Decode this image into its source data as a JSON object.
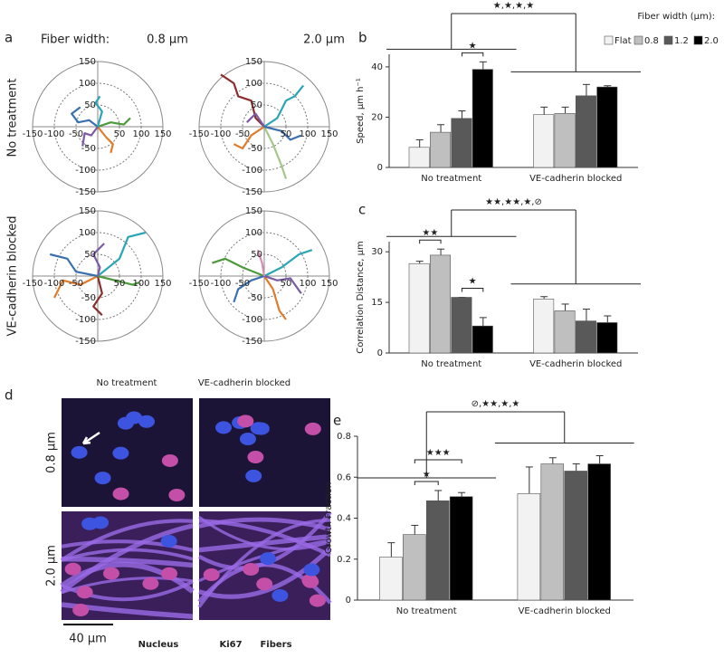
{
  "figure": {
    "panel_labels": [
      "a",
      "b",
      "c",
      "d",
      "e"
    ],
    "a": {
      "header_label": "Fiber width:",
      "columns": [
        "0.8 µm",
        "2.0 µm"
      ],
      "rows": [
        "No treatment",
        "VE-cadherin blocked"
      ]
    },
    "d": {
      "columns": [
        "No treatment",
        "VE-cadherin blocked"
      ],
      "rows": [
        "0.8 µm",
        "2.0 µm"
      ],
      "scale_bar": "40 µm",
      "channels": [
        {
          "name": "Nucleus",
          "color": "#3552d8"
        },
        {
          "name": "Ki67",
          "color": "#d42020"
        },
        {
          "name": "Fibers",
          "color": "#c93ad0"
        }
      ]
    }
  },
  "chart_data": [
    {
      "type": "polar",
      "xlim": [
        -150,
        150
      ],
      "ylim": [
        -150,
        150
      ],
      "xticks": [
        -150,
        -100,
        -50,
        50,
        100,
        150
      ],
      "yticks": [
        150,
        100,
        50,
        -50,
        -100,
        -150
      ],
      "series": [
        {
          "color": "#3a6fb0",
          "x": [
            0,
            -20,
            -45,
            -60,
            -40
          ],
          "y": [
            0,
            15,
            10,
            30,
            45
          ]
        },
        {
          "color": "#e07b2a",
          "x": [
            0,
            20,
            35,
            30
          ],
          "y": [
            0,
            -25,
            -40,
            -60
          ]
        },
        {
          "color": "#4c9a3c",
          "x": [
            0,
            30,
            60,
            75
          ],
          "y": [
            0,
            10,
            5,
            20
          ]
        },
        {
          "color": "#7b5aa6",
          "x": [
            0,
            -15,
            -30,
            -35
          ],
          "y": [
            0,
            -20,
            -15,
            -45
          ]
        },
        {
          "color": "#2aa5b5",
          "x": [
            0,
            10,
            -5,
            5
          ],
          "y": [
            0,
            35,
            55,
            70
          ]
        }
      ]
    },
    {
      "type": "polar",
      "xlim": [
        -150,
        150
      ],
      "ylim": [
        -150,
        150
      ],
      "xticks": [
        -150,
        -100,
        -50,
        50,
        100,
        150
      ],
      "yticks": [
        150,
        100,
        50,
        -50,
        -100,
        -150
      ],
      "series": [
        {
          "color": "#8b2e2e",
          "x": [
            0,
            -20,
            -30,
            -60,
            -70,
            -100
          ],
          "y": [
            0,
            20,
            60,
            70,
            100,
            120
          ]
        },
        {
          "color": "#2aa5b5",
          "x": [
            0,
            30,
            50,
            70,
            90
          ],
          "y": [
            0,
            20,
            60,
            70,
            95
          ]
        },
        {
          "color": "#a5c88a",
          "x": [
            0,
            20,
            40,
            50
          ],
          "y": [
            0,
            -40,
            -90,
            -120
          ]
        },
        {
          "color": "#e07b2a",
          "x": [
            0,
            -30,
            -50,
            -70
          ],
          "y": [
            0,
            -20,
            -50,
            -40
          ]
        },
        {
          "color": "#3a6fb0",
          "x": [
            0,
            40,
            60,
            85
          ],
          "y": [
            0,
            -10,
            -30,
            -20
          ]
        },
        {
          "color": "#7b5aa6",
          "x": [
            0,
            -20,
            -40
          ],
          "y": [
            0,
            30,
            10
          ]
        }
      ]
    },
    {
      "type": "polar",
      "xlim": [
        -150,
        150
      ],
      "ylim": [
        -150,
        150
      ],
      "xticks": [
        -150,
        -100,
        -50,
        50,
        100,
        150
      ],
      "yticks": [
        150,
        100,
        50,
        -50,
        -100,
        -150
      ],
      "series": [
        {
          "color": "#2aa5b5",
          "x": [
            0,
            50,
            70,
            110
          ],
          "y": [
            0,
            40,
            90,
            100
          ]
        },
        {
          "color": "#e07b2a",
          "x": [
            0,
            -40,
            -80,
            -100
          ],
          "y": [
            0,
            -20,
            -10,
            -50
          ]
        },
        {
          "color": "#8b2e2e",
          "x": [
            0,
            10,
            -10,
            10
          ],
          "y": [
            0,
            -40,
            -70,
            -90
          ]
        },
        {
          "color": "#3a6fb0",
          "x": [
            0,
            -50,
            -70,
            -110
          ],
          "y": [
            0,
            10,
            40,
            50
          ]
        },
        {
          "color": "#4c9a3c",
          "x": [
            0,
            40,
            80,
            95
          ],
          "y": [
            0,
            -10,
            -20,
            -15
          ]
        },
        {
          "color": "#7b5aa6",
          "x": [
            0,
            5,
            -10,
            15
          ],
          "y": [
            0,
            20,
            50,
            75
          ]
        }
      ]
    },
    {
      "type": "polar",
      "xlim": [
        -150,
        150
      ],
      "ylim": [
        -150,
        150
      ],
      "xticks": [
        -150,
        -100,
        -50,
        50,
        100,
        150
      ],
      "yticks": [
        150,
        100,
        50,
        -50,
        -100,
        -150
      ],
      "series": [
        {
          "color": "#4c9a3c",
          "x": [
            0,
            -50,
            -90,
            -120
          ],
          "y": [
            0,
            20,
            40,
            30
          ]
        },
        {
          "color": "#2aa5b5",
          "x": [
            0,
            40,
            80,
            110
          ],
          "y": [
            0,
            20,
            50,
            60
          ]
        },
        {
          "color": "#e07b2a",
          "x": [
            0,
            20,
            35,
            50
          ],
          "y": [
            0,
            -30,
            -80,
            -100
          ]
        },
        {
          "color": "#3a6fb0",
          "x": [
            0,
            -30,
            -60,
            -70
          ],
          "y": [
            0,
            -10,
            -30,
            -60
          ]
        },
        {
          "color": "#7b5aa6",
          "x": [
            0,
            30,
            60,
            85
          ],
          "y": [
            0,
            -10,
            -5,
            -40
          ]
        },
        {
          "color": "#d98cb3",
          "x": [
            0,
            -5,
            -15
          ],
          "y": [
            0,
            30,
            60
          ]
        }
      ]
    },
    {
      "type": "bar",
      "ylabel": "Speed, µm h⁻¹",
      "categories": [
        "No treatment",
        "VE-cadherin blocked"
      ],
      "ylim": [
        0,
        45
      ],
      "yticks": [
        0,
        20,
        40
      ],
      "legend_title": "Fiber width (µm):",
      "series": [
        {
          "name": "Flat",
          "color": "#f2f2f2",
          "values": [
            8,
            21
          ],
          "errors": [
            3,
            3
          ]
        },
        {
          "name": "0.8",
          "color": "#bfbfbf",
          "values": [
            14,
            21.5
          ],
          "errors": [
            3,
            2.5
          ]
        },
        {
          "name": "1.2",
          "color": "#595959",
          "values": [
            19.5,
            28.5
          ],
          "errors": [
            3,
            4.5
          ]
        },
        {
          "name": "2.0",
          "color": "#000000",
          "values": [
            39,
            32
          ],
          "errors": [
            3,
            0.5
          ]
        }
      ],
      "annotations": [
        "★,★,★,★",
        "★"
      ]
    },
    {
      "type": "bar",
      "ylabel": "Correlation Distance, µm",
      "categories": [
        "No treatment",
        "VE-cadherin blocked"
      ],
      "ylim": [
        0,
        33
      ],
      "yticks": [
        0,
        15,
        30
      ],
      "series": [
        {
          "color": "#f2f2f2",
          "values": [
            26.5,
            16
          ],
          "errors": [
            0.7,
            0.7
          ]
        },
        {
          "color": "#bfbfbf",
          "values": [
            29,
            12.5
          ],
          "errors": [
            1.8,
            2
          ]
        },
        {
          "color": "#595959",
          "values": [
            16.5,
            9.5
          ],
          "errors": [
            0,
            3.5
          ]
        },
        {
          "color": "#000000",
          "values": [
            8,
            9
          ],
          "errors": [
            2.5,
            2
          ]
        }
      ],
      "annotations": [
        "★★,★★,★,⊘",
        "★★",
        "★"
      ]
    },
    {
      "type": "bar",
      "ylabel": "Growth Fraction",
      "categories": [
        "No treatment",
        "VE-cadherin blocked"
      ],
      "ylim": [
        0,
        0.8
      ],
      "yticks": [
        0,
        0.2,
        0.4,
        0.6,
        0.8
      ],
      "series": [
        {
          "color": "#f2f2f2",
          "values": [
            0.21,
            0.52
          ],
          "errors": [
            0.07,
            0.13
          ]
        },
        {
          "color": "#bfbfbf",
          "values": [
            0.32,
            0.665
          ],
          "errors": [
            0.045,
            0.03
          ]
        },
        {
          "color": "#595959",
          "values": [
            0.485,
            0.63
          ],
          "errors": [
            0.05,
            0.035
          ]
        },
        {
          "color": "#000000",
          "values": [
            0.505,
            0.665
          ],
          "errors": [
            0.02,
            0.04
          ]
        }
      ],
      "annotations": [
        "⊘,★★,★,★",
        "★★★",
        "★"
      ]
    }
  ]
}
